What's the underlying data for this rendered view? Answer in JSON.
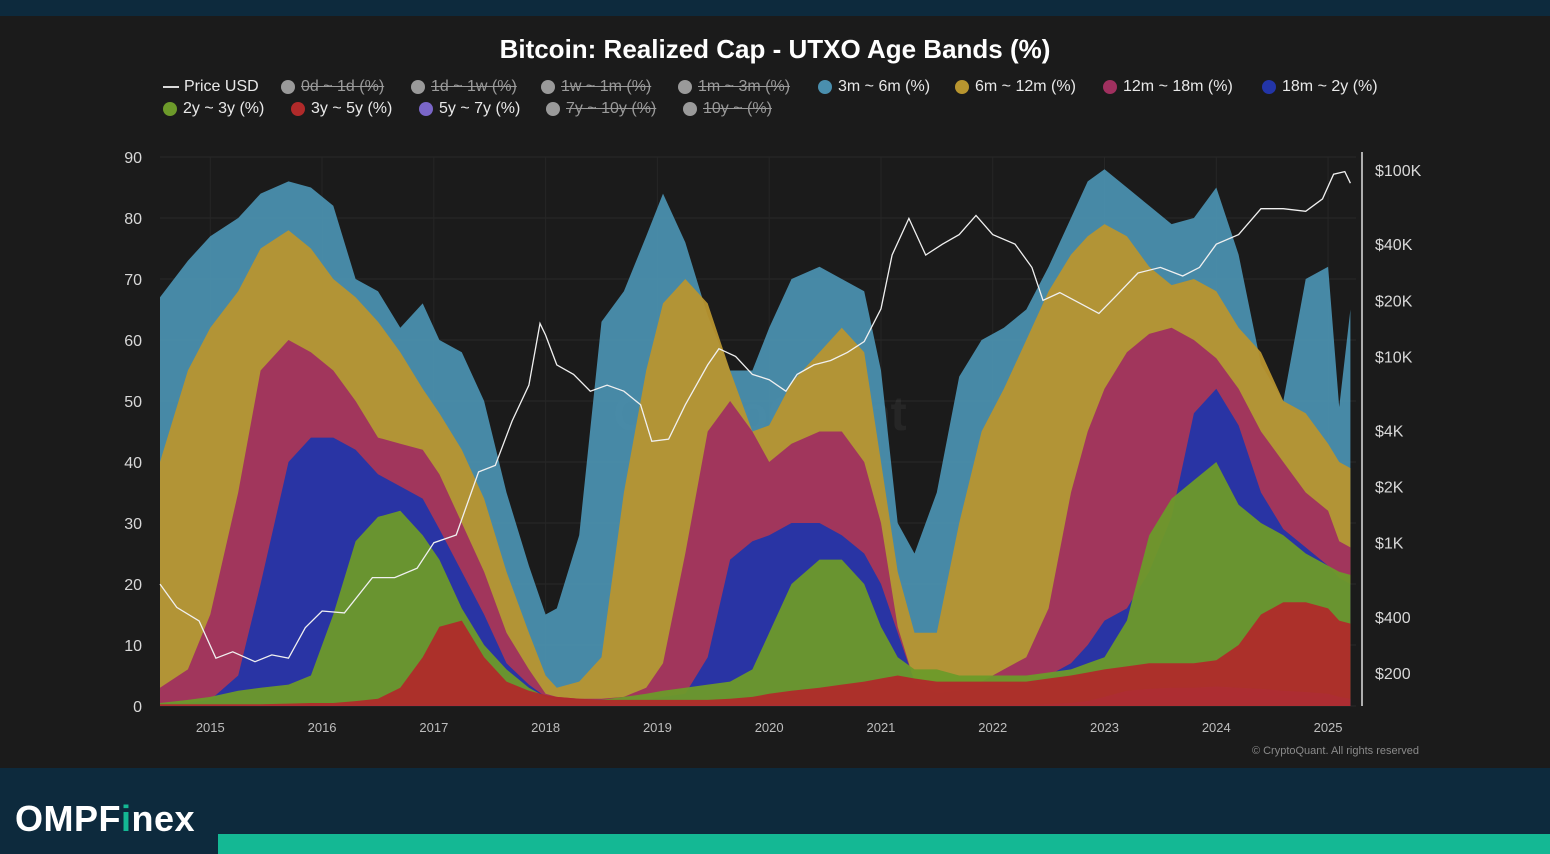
{
  "branding": {
    "name_part1": "OMPF",
    "name_i": "i",
    "name_part2": "nex"
  },
  "copyright": "© CryptoQuant. All rights reserved",
  "colors": {
    "background": "#1b1b1b",
    "frame": "#0d2a3d",
    "accent": "#14b894",
    "price_line": "#f0f0f0"
  },
  "chart_data": {
    "type": "area",
    "title": "Bitcoin: Realized Cap - UTXO Age Bands (%)",
    "stacked": true,
    "legend_position": "top",
    "legend": [
      {
        "label": "Price USD",
        "kind": "line",
        "color": "#d9d9d9",
        "hidden": false
      },
      {
        "label": "0d ~ 1d (%)",
        "kind": "dot",
        "color": "#9a9a9a",
        "hidden": true
      },
      {
        "label": "1d ~ 1w (%)",
        "kind": "dot",
        "color": "#9a9a9a",
        "hidden": true
      },
      {
        "label": "1w ~ 1m (%)",
        "kind": "dot",
        "color": "#9a9a9a",
        "hidden": true
      },
      {
        "label": "1m ~ 3m (%)",
        "kind": "dot",
        "color": "#9a9a9a",
        "hidden": true
      },
      {
        "label": "3m ~ 6m (%)",
        "kind": "dot",
        "color": "#4a8fae",
        "hidden": false
      },
      {
        "label": "6m ~ 12m (%)",
        "kind": "dot",
        "color": "#b8952f",
        "hidden": false
      },
      {
        "label": "12m ~ 18m (%)",
        "kind": "dot",
        "color": "#a0305f",
        "hidden": false
      },
      {
        "label": "18m ~ 2y (%)",
        "kind": "dot",
        "color": "#2335a8",
        "hidden": false
      },
      {
        "label": "2y ~ 3y (%)",
        "kind": "dot",
        "color": "#6d9a2a",
        "hidden": false
      },
      {
        "label": "3y ~ 5y (%)",
        "kind": "dot",
        "color": "#b02a2a",
        "hidden": false
      },
      {
        "label": "5y ~ 7y (%)",
        "kind": "dot",
        "color": "#7a66c8",
        "hidden": false
      },
      {
        "label": "7y ~ 10y (%)",
        "kind": "dot",
        "color": "#9a9a9a",
        "hidden": true
      },
      {
        "label": "10y ~ (%)",
        "kind": "dot",
        "color": "#9a9a9a",
        "hidden": true
      }
    ],
    "x_ticks": [
      "2015",
      "2016",
      "2017",
      "2018",
      "2019",
      "2020",
      "2021",
      "2022",
      "2023",
      "2024",
      "2025"
    ],
    "x_range": [
      2014.55,
      2025.25
    ],
    "y_left": {
      "ticks": [
        0,
        10,
        20,
        30,
        40,
        50,
        60,
        70,
        80,
        90
      ],
      "range": [
        0,
        90
      ]
    },
    "y_right": {
      "scale": "log",
      "ticks": [
        {
          "label": "$100K",
          "value": 100000
        },
        {
          "label": "$40K",
          "value": 40000
        },
        {
          "label": "$20K",
          "value": 20000
        },
        {
          "label": "$10K",
          "value": 10000
        },
        {
          "label": "$4K",
          "value": 4000
        },
        {
          "label": "$2K",
          "value": 2000
        },
        {
          "label": "$1K",
          "value": 1000
        },
        {
          "label": "$400",
          "value": 400
        },
        {
          "label": "$200",
          "value": 200
        }
      ]
    },
    "x": [
      2014.55,
      2014.8,
      2015.0,
      2015.25,
      2015.45,
      2015.7,
      2015.9,
      2016.1,
      2016.3,
      2016.5,
      2016.7,
      2016.9,
      2017.05,
      2017.25,
      2017.45,
      2017.65,
      2017.85,
      2018.0,
      2018.1,
      2018.3,
      2018.5,
      2018.7,
      2018.9,
      2019.05,
      2019.25,
      2019.45,
      2019.65,
      2019.85,
      2020.0,
      2020.2,
      2020.45,
      2020.65,
      2020.85,
      2021.0,
      2021.15,
      2021.3,
      2021.5,
      2021.7,
      2021.9,
      2022.1,
      2022.3,
      2022.5,
      2022.7,
      2022.85,
      2023.0,
      2023.2,
      2023.4,
      2023.6,
      2023.8,
      2024.0,
      2024.2,
      2024.4,
      2024.6,
      2024.8,
      2025.0,
      2025.1,
      2025.2
    ],
    "series": [
      {
        "name": "3y ~ 5y (%)",
        "color": "#b02a2a",
        "values": [
          0.3,
          0.3,
          0.3,
          0.3,
          0.3,
          0.4,
          0.5,
          0.5,
          0.8,
          1.2,
          3.0,
          8.0,
          13.0,
          14.0,
          8.0,
          4.0,
          2.5,
          1.8,
          1.5,
          1.2,
          1.0,
          1.0,
          1.0,
          1.0,
          1.0,
          1.0,
          1.2,
          1.5,
          2.0,
          2.5,
          3.0,
          3.5,
          4.0,
          4.5,
          5.0,
          4.5,
          4.0,
          4.0,
          4.0,
          4.0,
          4.0,
          4.5,
          5.0,
          5.5,
          6.0,
          6.5,
          7.0,
          7.0,
          7.0,
          7.5,
          10.0,
          15.0,
          17.0,
          17.0,
          16.0,
          14.0,
          13.5
        ]
      },
      {
        "name": "5y ~ 7y (%)",
        "color": "#7a66c8",
        "values": [
          0.2,
          0.2,
          0.2,
          0.2,
          0.2,
          0.2,
          0.2,
          0.2,
          0.2,
          0.2,
          0.2,
          0.2,
          0.2,
          0.2,
          0.2,
          0.2,
          0.2,
          0.2,
          0.2,
          0.2,
          0.2,
          0.2,
          0.2,
          0.2,
          0.2,
          0.2,
          0.2,
          0.2,
          0.2,
          0.2,
          0.2,
          0.2,
          0.2,
          0.2,
          0.2,
          0.2,
          0.2,
          0.2,
          0.2,
          0.2,
          0.2,
          0.3,
          0.5,
          0.8,
          1.5,
          2.5,
          2.8,
          3.0,
          3.0,
          3.2,
          3.0,
          2.8,
          2.5,
          2.3,
          2.0,
          1.5,
          1.2
        ]
      },
      {
        "name": "2y ~ 3y (%)",
        "color": "#6d9a2a",
        "values": [
          0.5,
          1.0,
          1.5,
          2.5,
          3.0,
          3.5,
          5.0,
          15.0,
          27.0,
          31.0,
          32.0,
          28.0,
          24.0,
          16.0,
          10.0,
          6.0,
          3.0,
          1.5,
          1.0,
          1.0,
          1.0,
          1.5,
          2.0,
          2.5,
          3.0,
          3.5,
          4.0,
          6.0,
          12.0,
          20.0,
          24.0,
          24.0,
          20.0,
          13.0,
          8.0,
          6.0,
          6.0,
          5.0,
          5.0,
          5.0,
          5.0,
          5.5,
          6.0,
          7.0,
          8.0,
          14.0,
          28.0,
          34.0,
          37.0,
          40.0,
          33.0,
          30.0,
          28.0,
          25.0,
          23.0,
          22.0,
          21.5
        ]
      },
      {
        "name": "18m ~ 2y (%)",
        "color": "#2335a8",
        "values": [
          0.5,
          0.5,
          1.0,
          5.0,
          20.0,
          40.0,
          44.0,
          44.0,
          42.0,
          38.0,
          36.0,
          34.0,
          29.0,
          22.0,
          15.0,
          7.0,
          3.5,
          1.5,
          1.0,
          1.0,
          1.0,
          1.0,
          1.0,
          1.5,
          2.0,
          8.0,
          24.0,
          27.0,
          28.0,
          30.0,
          30.0,
          28.0,
          25.0,
          20.0,
          12.0,
          4.0,
          2.0,
          2.5,
          3.0,
          3.0,
          4.0,
          5.0,
          7.0,
          10.0,
          14.0,
          16.0,
          22.0,
          31.0,
          48.0,
          52.0,
          46.0,
          35.0,
          29.0,
          26.0,
          23.0,
          21.0,
          20.0
        ]
      },
      {
        "name": "12m ~ 18m (%)",
        "color": "#a0305f",
        "values": [
          3.0,
          6.0,
          15.0,
          35.0,
          55.0,
          60.0,
          58.0,
          55.0,
          50.0,
          44.0,
          43.0,
          42.0,
          38.0,
          30.0,
          22.0,
          12.0,
          6.0,
          2.0,
          1.5,
          1.2,
          1.2,
          1.5,
          3.0,
          7.0,
          25.0,
          45.0,
          50.0,
          45.0,
          40.0,
          43.0,
          45.0,
          45.0,
          40.0,
          30.0,
          13.0,
          4.0,
          3.0,
          3.0,
          4.0,
          6.0,
          8.0,
          16.0,
          35.0,
          45.0,
          52.0,
          58.0,
          61.0,
          62.0,
          60.0,
          57.0,
          52.0,
          45.0,
          40.0,
          35.0,
          32.0,
          27.0,
          26.0
        ]
      },
      {
        "name": "6m ~ 12m (%)",
        "color": "#b8952f",
        "values": [
          40.0,
          55.0,
          62.0,
          68.0,
          75.0,
          78.0,
          75.0,
          70.0,
          67.0,
          63.0,
          58.0,
          52.0,
          48.0,
          42.0,
          34.0,
          22.0,
          12.0,
          5.0,
          3.0,
          4.0,
          8.0,
          35.0,
          55.0,
          66.0,
          70.0,
          66.0,
          55.0,
          45.0,
          46.0,
          53.0,
          58.0,
          62.0,
          58.0,
          40.0,
          22.0,
          12.0,
          12.0,
          30.0,
          45.0,
          52.0,
          60.0,
          68.0,
          74.0,
          77.0,
          79.0,
          77.0,
          72.0,
          69.0,
          70.0,
          68.0,
          62.0,
          58.0,
          50.0,
          48.0,
          43.0,
          40.0,
          39.0
        ]
      },
      {
        "name": "3m ~ 6m (%)",
        "color": "#4a8fae",
        "values": [
          67.0,
          73.0,
          77.0,
          80.0,
          84.0,
          86.0,
          85.0,
          82.0,
          70.0,
          68.0,
          62.0,
          66.0,
          60.0,
          58.0,
          50.0,
          35.0,
          23.0,
          15.0,
          16.0,
          28.0,
          63.0,
          68.0,
          77.0,
          84.0,
          76.0,
          64.0,
          55.0,
          55.0,
          62.0,
          70.0,
          72.0,
          70.0,
          68.0,
          55.0,
          30.0,
          25.0,
          35.0,
          54.0,
          60.0,
          62.0,
          65.0,
          72.0,
          80.0,
          86.0,
          88.0,
          85.0,
          82.0,
          79.0,
          80.0,
          85.0,
          74.0,
          56.0,
          50.0,
          70.0,
          72.0,
          49.0,
          65.0
        ]
      }
    ],
    "price_line": {
      "name": "Price USD",
      "color": "#f0f0f0",
      "x": [
        2014.55,
        2014.7,
        2014.9,
        2015.05,
        2015.2,
        2015.4,
        2015.55,
        2015.7,
        2015.85,
        2016.0,
        2016.2,
        2016.45,
        2016.65,
        2016.85,
        2017.0,
        2017.2,
        2017.4,
        2017.55,
        2017.7,
        2017.85,
        2017.95,
        2018.0,
        2018.1,
        2018.25,
        2018.4,
        2018.55,
        2018.7,
        2018.85,
        2018.95,
        2019.1,
        2019.25,
        2019.45,
        2019.55,
        2019.7,
        2019.85,
        2020.0,
        2020.15,
        2020.25,
        2020.4,
        2020.55,
        2020.7,
        2020.85,
        2021.0,
        2021.1,
        2021.25,
        2021.4,
        2021.55,
        2021.7,
        2021.85,
        2022.0,
        2022.2,
        2022.35,
        2022.45,
        2022.6,
        2022.8,
        2022.95,
        2023.1,
        2023.3,
        2023.5,
        2023.7,
        2023.85,
        2024.0,
        2024.2,
        2024.4,
        2024.6,
        2024.8,
        2024.95,
        2025.05,
        2025.15,
        2025.2
      ],
      "y": [
        600,
        450,
        380,
        240,
        260,
        230,
        250,
        240,
        350,
        430,
        420,
        650,
        650,
        730,
        1000,
        1100,
        2400,
        2600,
        4500,
        7000,
        15000,
        13000,
        9000,
        8000,
        6500,
        7000,
        6500,
        5500,
        3500,
        3600,
        5500,
        9000,
        11000,
        10000,
        8000,
        7500,
        6500,
        8000,
        9000,
        9500,
        10500,
        12000,
        18000,
        35000,
        55000,
        35000,
        40000,
        45000,
        57000,
        45000,
        40000,
        30000,
        20000,
        22000,
        19000,
        17000,
        21000,
        28000,
        30000,
        27000,
        30000,
        40000,
        45000,
        62000,
        62000,
        60000,
        70000,
        95000,
        98000,
        85000
      ]
    }
  }
}
